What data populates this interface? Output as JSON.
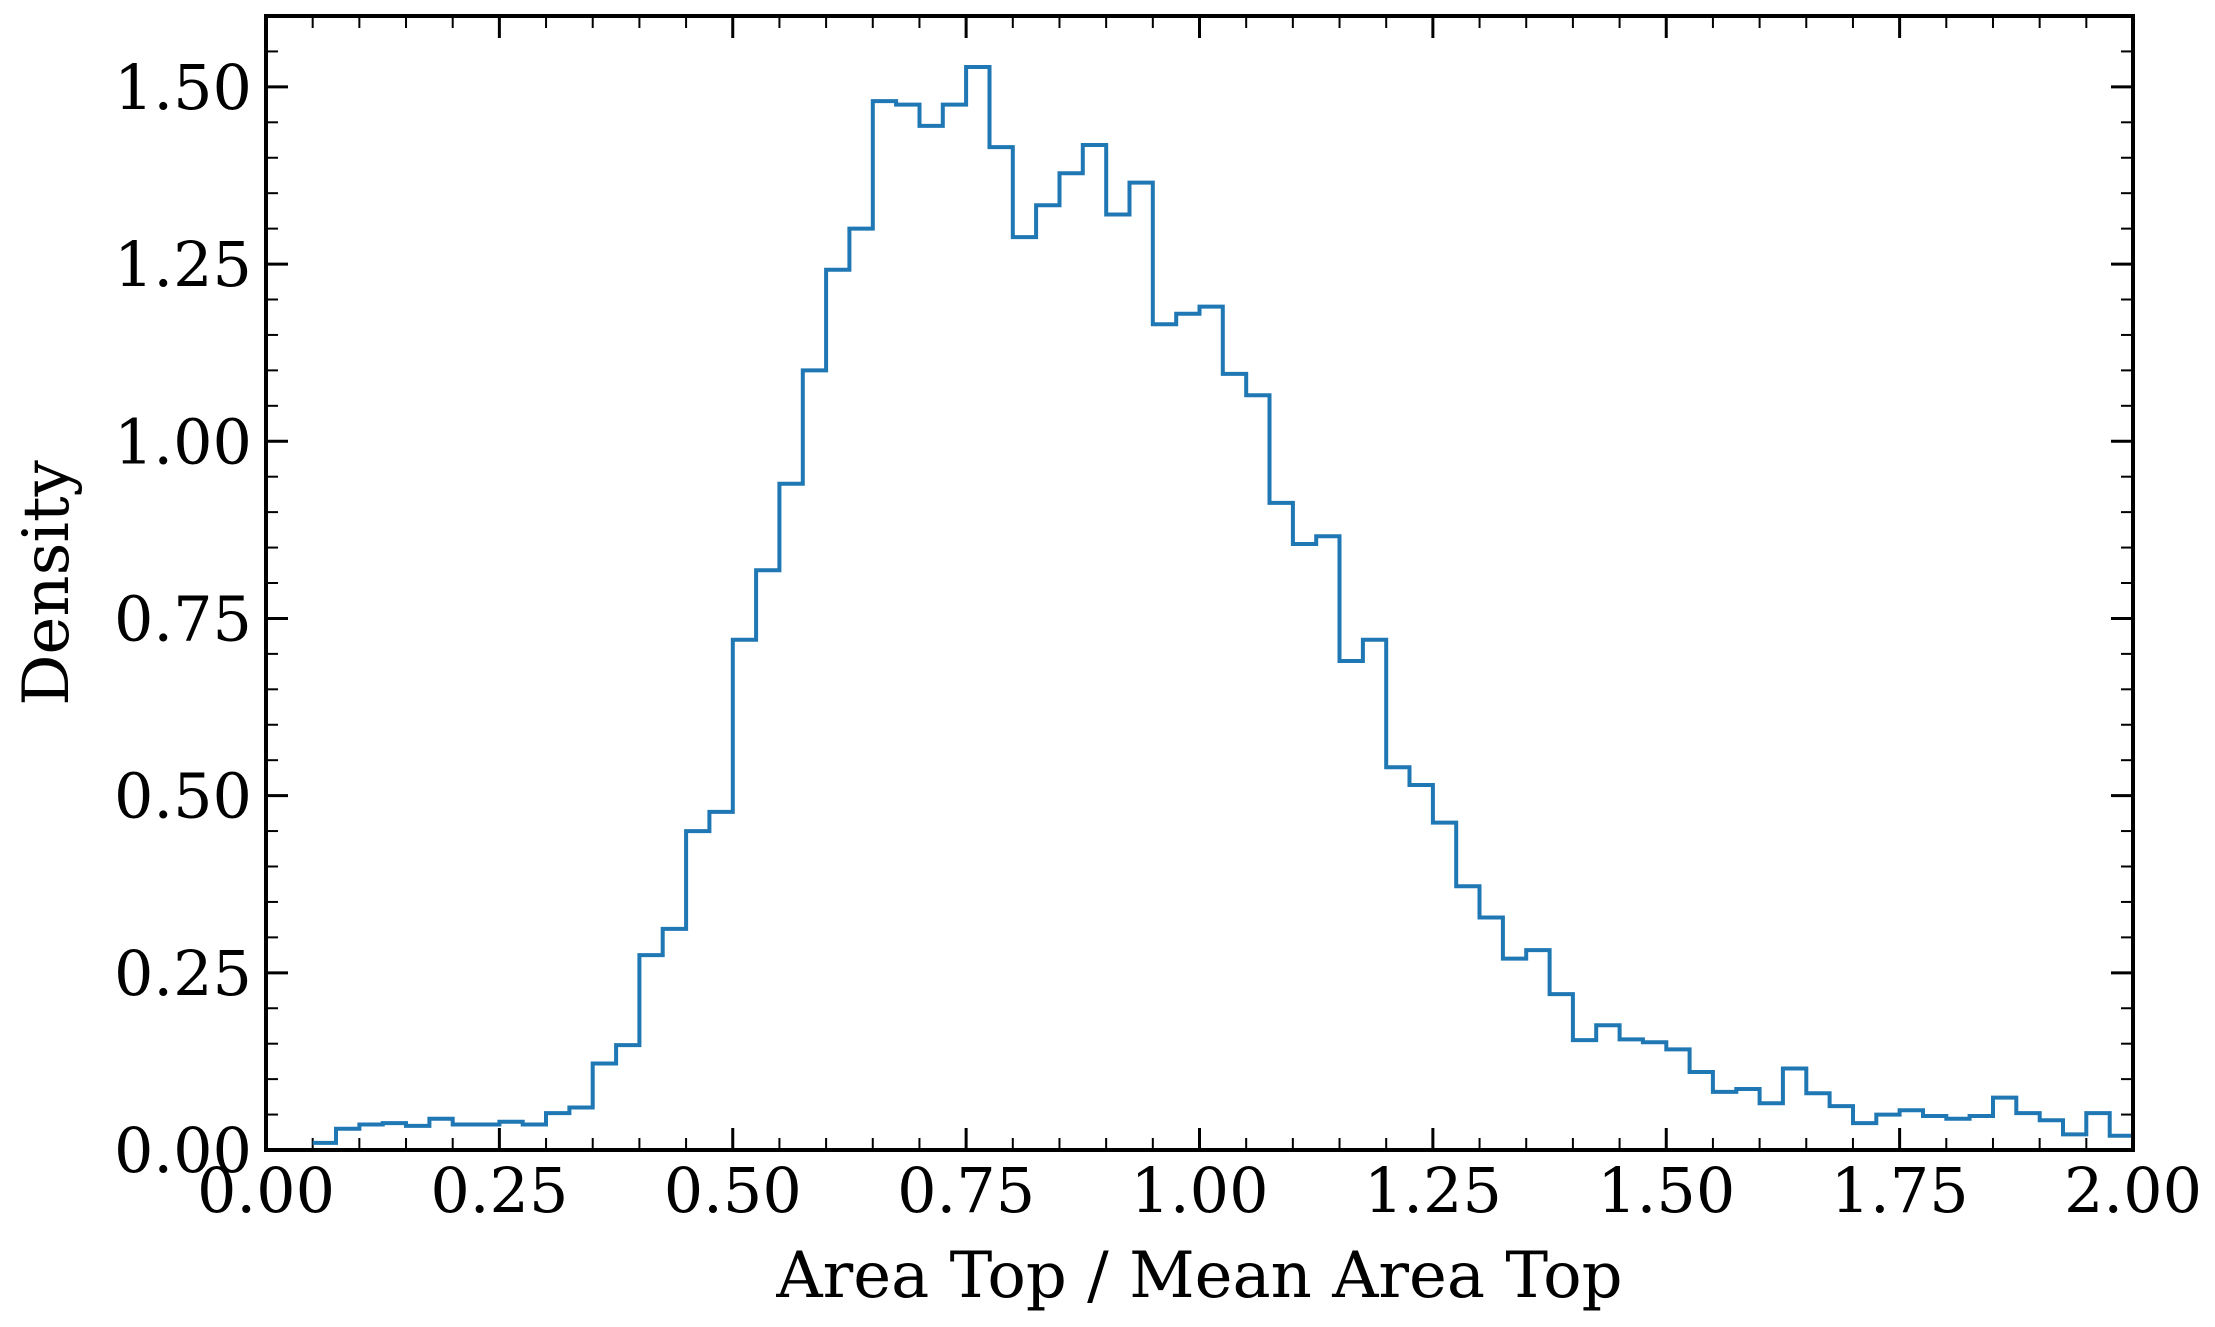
{
  "chart_data": {
    "type": "histogram",
    "title": "",
    "xlabel": "Area Top / Mean Area Top",
    "ylabel": "Density",
    "xlim": [
      0.0,
      2.0
    ],
    "ylim": [
      0.0,
      1.6
    ],
    "xticks": [
      "0.00",
      "0.25",
      "0.50",
      "0.75",
      "1.00",
      "1.25",
      "1.50",
      "1.75",
      "2.00"
    ],
    "yticks": [
      "0.00",
      "0.25",
      "0.50",
      "0.75",
      "1.00",
      "1.25",
      "1.50"
    ],
    "grid": false,
    "line_color": "#1f77b4",
    "bin_width": 0.025,
    "bin_start": 0.05,
    "values": [
      0.01,
      0.03,
      0.036,
      0.038,
      0.034,
      0.044,
      0.036,
      0.036,
      0.04,
      0.036,
      0.052,
      0.06,
      0.122,
      0.148,
      0.275,
      0.312,
      0.45,
      0.477,
      0.72,
      0.818,
      0.94,
      1.1,
      1.242,
      1.3,
      1.48,
      1.475,
      1.445,
      1.475,
      1.528,
      1.415,
      1.288,
      1.333,
      1.378,
      1.418,
      1.32,
      1.365,
      1.165,
      1.18,
      1.19,
      1.095,
      1.065,
      0.913,
      0.855,
      0.866,
      0.69,
      0.72,
      0.54,
      0.515,
      0.462,
      0.372,
      0.328,
      0.27,
      0.282,
      0.22,
      0.155,
      0.176,
      0.156,
      0.152,
      0.142,
      0.11,
      0.082,
      0.086,
      0.066,
      0.115,
      0.08,
      0.062,
      0.038,
      0.05,
      0.056,
      0.048,
      0.044,
      0.048,
      0.074,
      0.052,
      0.042,
      0.022,
      0.052,
      0.02
    ]
  }
}
